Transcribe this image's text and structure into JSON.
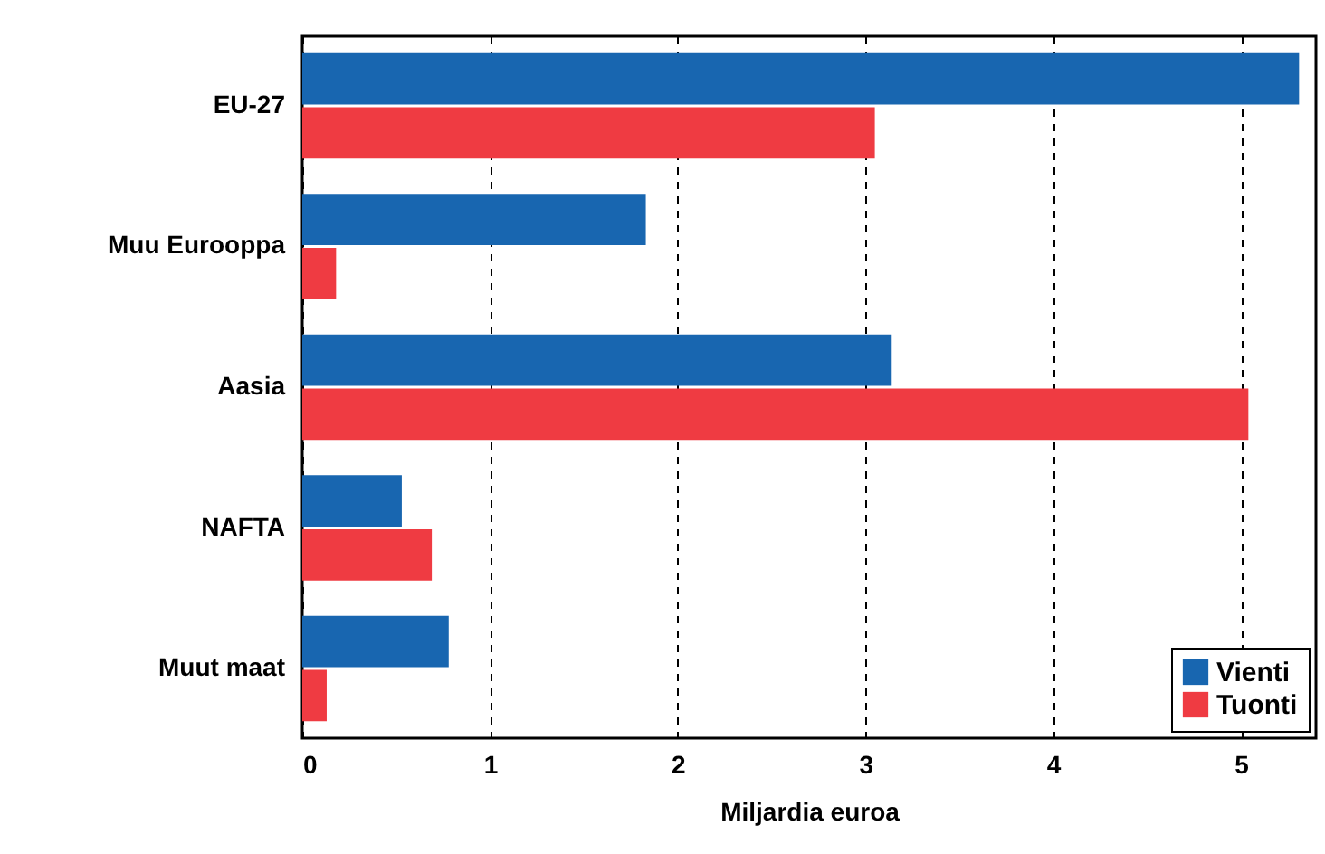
{
  "chart_data": {
    "type": "bar",
    "orientation": "horizontal",
    "xlabel": "Miljardia euroa",
    "categories": [
      "EU-27",
      "Muu Eurooppa",
      "Aasia",
      "NAFTA",
      "Muut maat"
    ],
    "series": [
      {
        "name": "Vienti",
        "color": "#1866b0",
        "values": [
          5.31,
          1.83,
          3.14,
          0.53,
          0.78
        ]
      },
      {
        "name": "Tuonti",
        "color": "#ef3b42",
        "values": [
          3.05,
          0.18,
          5.04,
          0.69,
          0.13
        ]
      }
    ],
    "xlim": [
      0,
      5.4
    ],
    "xticks": [
      0,
      1,
      2,
      3,
      4,
      5
    ],
    "grid": "x",
    "legend": "bottom right"
  }
}
